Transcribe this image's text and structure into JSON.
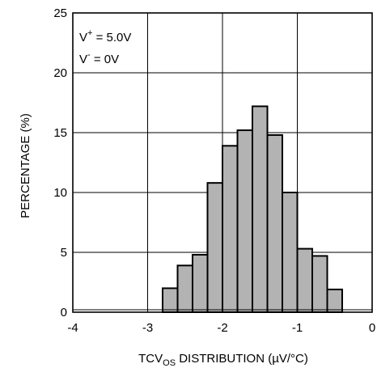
{
  "chart_data": {
    "type": "bar",
    "title": "",
    "xlabel": "TCVOS DISTRIBUTION (µV/°C)",
    "xlabel_parts": {
      "pre": "TCV",
      "sub": "OS",
      "post": " DISTRIBUTION (µV/°C)"
    },
    "ylabel": "PERCENTAGE (%)",
    "xlim": [
      -4,
      0
    ],
    "ylim": [
      0,
      25
    ],
    "xticks": [
      "-4",
      "-3",
      "-2",
      "-1",
      "0"
    ],
    "yticks": [
      "0",
      "5",
      "10",
      "15",
      "20",
      "25"
    ],
    "grid": true,
    "bin_width": 0.2,
    "bars": [
      {
        "x_start": -2.8,
        "x_end": -2.6,
        "value": 2.0
      },
      {
        "x_start": -2.6,
        "x_end": -2.4,
        "value": 3.9
      },
      {
        "x_start": -2.4,
        "x_end": -2.2,
        "value": 4.8
      },
      {
        "x_start": -2.2,
        "x_end": -2.0,
        "value": 10.8
      },
      {
        "x_start": -2.0,
        "x_end": -1.8,
        "value": 13.9
      },
      {
        "x_start": -1.8,
        "x_end": -1.6,
        "value": 15.2
      },
      {
        "x_start": -1.6,
        "x_end": -1.4,
        "value": 17.2
      },
      {
        "x_start": -1.4,
        "x_end": -1.2,
        "value": 14.8
      },
      {
        "x_start": -1.2,
        "x_end": -1.0,
        "value": 10.0
      },
      {
        "x_start": -1.0,
        "x_end": -0.8,
        "value": 5.3
      },
      {
        "x_start": -0.8,
        "x_end": -0.6,
        "value": 4.7
      },
      {
        "x_start": -0.6,
        "x_end": -0.4,
        "value": 1.9
      }
    ],
    "annotations": [
      {
        "text": "V",
        "sup": "+",
        "rest": " = 5.0V"
      },
      {
        "text": "V",
        "sup": "-",
        "rest": " = 0V"
      }
    ],
    "colors": {
      "bar_fill": "#b3b3b3",
      "bar_stroke": "#000000",
      "grid": "#000000"
    }
  }
}
